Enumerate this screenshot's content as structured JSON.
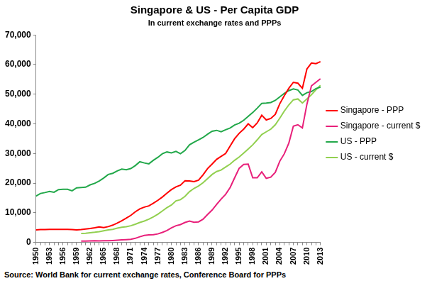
{
  "chart_data": {
    "type": "line",
    "title": "Singapore & US - Per Capita GDP",
    "subtitle": "In current exchange rates and PPPs",
    "annotations": [
      "Source: World Bank for current exchange rates, Conference Board for PPPs"
    ],
    "categories": [
      "1950",
      null,
      null,
      "1953",
      null,
      null,
      "1956",
      null,
      null,
      "1959",
      null,
      null,
      "1962",
      null,
      null,
      "1965",
      null,
      null,
      "1968",
      null,
      null,
      "1971",
      null,
      null,
      "1974",
      null,
      null,
      "1977",
      null,
      null,
      "1980",
      null,
      null,
      "1983",
      null,
      null,
      "1986",
      null,
      null,
      "1989",
      null,
      null,
      "1992",
      null,
      null,
      "1995",
      null,
      null,
      "1998",
      null,
      null,
      "2001",
      null,
      null,
      "2004",
      null,
      null,
      "2007",
      null,
      null,
      "2010",
      null,
      null,
      "2013"
    ],
    "series": [
      {
        "name": "Singapore - PPP",
        "color": "#ff0000",
        "values": [
          4200,
          4300,
          4300,
          4400,
          4400,
          4400,
          4400,
          4400,
          4300,
          4200,
          4300,
          4500,
          4700,
          4900,
          5200,
          5000,
          5300,
          5800,
          6500,
          7300,
          8200,
          9100,
          10300,
          11300,
          11900,
          12300,
          13200,
          14200,
          15300,
          16600,
          17800,
          18700,
          19300,
          20800,
          20700,
          20500,
          21000,
          22800,
          24900,
          26400,
          28000,
          29000,
          30000,
          32500,
          35000,
          36800,
          38200,
          40000,
          38700,
          40300,
          42900,
          41300,
          41800,
          43200,
          46800,
          49500,
          52000,
          54000,
          53700,
          52000,
          58500,
          60500,
          60300,
          61000
        ]
      },
      {
        "name": "Singapore - current $",
        "color": "#e8207a",
        "values": [
          null,
          null,
          null,
          null,
          null,
          null,
          null,
          null,
          null,
          null,
          430,
          450,
          480,
          520,
          490,
          520,
          570,
          630,
          710,
          820,
          920,
          1050,
          1360,
          1890,
          2330,
          2500,
          2580,
          2850,
          3350,
          4000,
          4900,
          5600,
          6000,
          6700,
          7200,
          6800,
          6900,
          7800,
          9400,
          10900,
          12800,
          14600,
          16200,
          18500,
          21800,
          25000,
          26300,
          26400,
          21800,
          21800,
          23800,
          21600,
          22000,
          23600,
          27400,
          29900,
          33500,
          39200,
          39700,
          38600,
          46600,
          52800,
          54000,
          55200
        ]
      },
      {
        "name": "US - PPP",
        "color": "#22a84a",
        "values": [
          15600,
          16500,
          16800,
          17200,
          16900,
          17800,
          17900,
          17900,
          17400,
          18400,
          18500,
          18600,
          19400,
          19900,
          20700,
          21700,
          22900,
          23300,
          24100,
          24700,
          24500,
          24900,
          25900,
          27200,
          26800,
          26500,
          27700,
          28700,
          29900,
          30500,
          30200,
          30700,
          29900,
          31000,
          32900,
          33800,
          34600,
          35400,
          36500,
          37500,
          37800,
          37300,
          38000,
          38600,
          39600,
          40200,
          41200,
          42500,
          43800,
          45300,
          46900,
          47000,
          47200,
          47900,
          49100,
          50300,
          51200,
          51800,
          51400,
          49600,
          50500,
          50900,
          51900,
          52400
        ]
      },
      {
        "name": "US - current $",
        "color": "#92d050",
        "values": [
          null,
          null,
          null,
          null,
          null,
          null,
          null,
          null,
          null,
          null,
          3000,
          3050,
          3250,
          3400,
          3600,
          3900,
          4200,
          4400,
          4800,
          5100,
          5300,
          5600,
          6100,
          6700,
          7200,
          7800,
          8600,
          9500,
          10600,
          11700,
          12600,
          14000,
          14400,
          15500,
          17100,
          18200,
          19000,
          20100,
          21500,
          22900,
          23900,
          24400,
          25400,
          26400,
          27700,
          28800,
          30100,
          31500,
          32900,
          34600,
          36400,
          37300,
          38200,
          39700,
          41900,
          44300,
          46400,
          48100,
          48400,
          47000,
          48400,
          49800,
          51500,
          53000
        ]
      }
    ],
    "ylim": [
      0,
      70000
    ],
    "yticks": [
      0,
      {
        "value": 10000,
        "label": "10,000"
      },
      {
        "value": 20000,
        "label": "20,000"
      },
      {
        "value": 30000,
        "label": "30,000"
      },
      {
        "value": 40000,
        "label": "40,000"
      },
      {
        "value": 50000,
        "label": "50,000"
      },
      {
        "value": 60000,
        "label": "60,000"
      },
      {
        "value": 70000,
        "label": "70,000"
      }
    ],
    "grid": false,
    "legend": "right"
  }
}
